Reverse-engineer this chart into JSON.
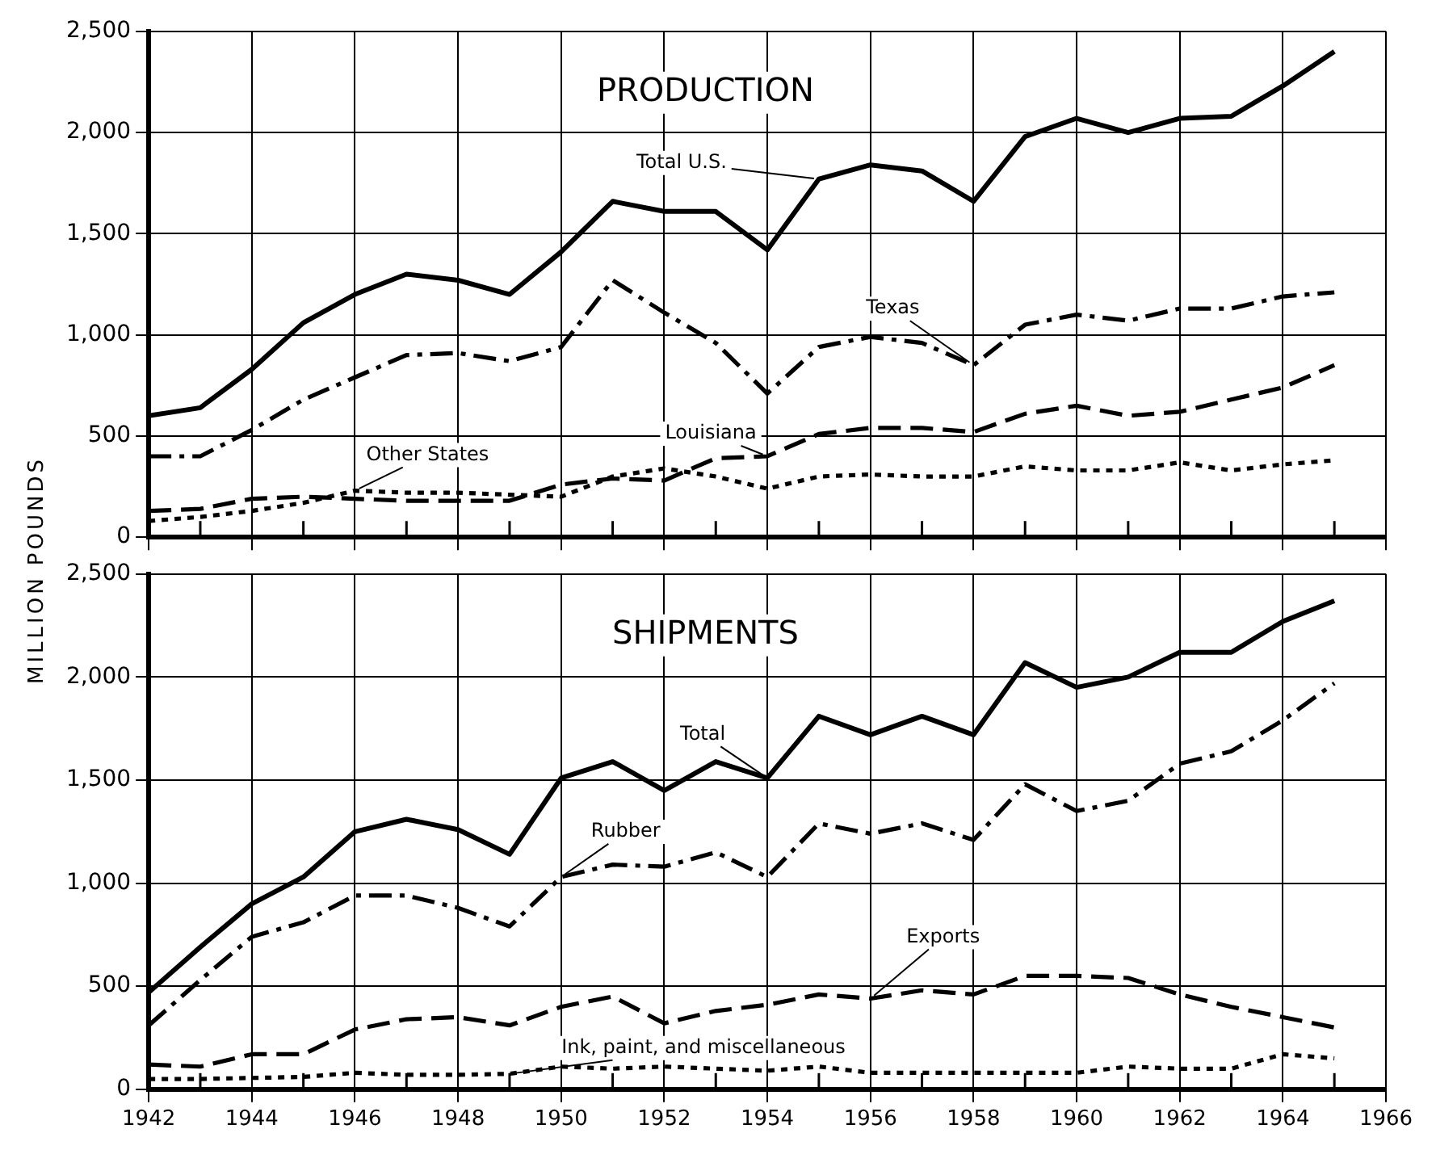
{
  "chart_data": [
    {
      "type": "line",
      "title": "PRODUCTION",
      "ylabel": "MILLION POUNDS",
      "tick_labels": "y",
      "grid": true,
      "xlim": [
        1942,
        1966
      ],
      "xticks": [
        1942,
        {
          "value": 1943,
          "label": null
        },
        1944,
        {
          "value": 1945,
          "label": null
        },
        1946,
        {
          "value": 1947,
          "label": null
        },
        1948,
        {
          "value": 1949,
          "label": null
        },
        1950,
        {
          "value": 1951,
          "label": null
        },
        1952,
        {
          "value": 1953,
          "label": null
        },
        1954,
        {
          "value": 1955,
          "label": null
        },
        1956,
        {
          "value": 1957,
          "label": null
        },
        1958,
        {
          "value": 1959,
          "label": null
        },
        1960,
        {
          "value": 1961,
          "label": null
        },
        1962,
        {
          "value": 1963,
          "label": null
        },
        1964,
        {
          "value": 1965,
          "label": null
        },
        1966
      ],
      "ylim": [
        0,
        2500
      ],
      "yticks": [
        {
          "value": 0,
          "label": "0"
        },
        {
          "value": 500,
          "label": "500"
        },
        {
          "value": 1000,
          "label": "1,000"
        },
        {
          "value": 1500,
          "label": "1,500"
        },
        {
          "value": 2000,
          "label": "2,000"
        },
        {
          "value": 2500,
          "label": "2,500"
        }
      ],
      "x": [
        1942,
        1943,
        1944,
        1945,
        1946,
        1947,
        1948,
        1949,
        1950,
        1951,
        1952,
        1953,
        1954,
        1955,
        1956,
        1957,
        1958,
        1959,
        1960,
        1961,
        1962,
        1963,
        1964,
        1965
      ],
      "marker": "none",
      "series": [
        {
          "name": "Total U.S.",
          "color": "#000000",
          "line_style": "solid",
          "values": [
            600,
            640,
            830,
            1060,
            1200,
            1300,
            1270,
            1200,
            1410,
            1660,
            1610,
            1610,
            1420,
            1770,
            1840,
            1810,
            1660,
            1980,
            2070,
            2000,
            2070,
            2080,
            2230,
            2400
          ]
        },
        {
          "name": "Texas",
          "color": "#000000",
          "line_style": "dashdot",
          "values": [
            400,
            400,
            530,
            680,
            790,
            900,
            910,
            870,
            940,
            1270,
            1110,
            960,
            710,
            940,
            990,
            960,
            850,
            1050,
            1100,
            1070,
            1130,
            1130,
            1190,
            1210
          ]
        },
        {
          "name": "Louisiana",
          "color": "#000000",
          "line_style": "dashed",
          "values": [
            130,
            140,
            190,
            200,
            190,
            180,
            180,
            180,
            260,
            290,
            280,
            390,
            400,
            510,
            540,
            540,
            520,
            610,
            650,
            600,
            620,
            680,
            740,
            850
          ]
        },
        {
          "name": "Other States",
          "color": "#000000",
          "line_style": "dotted",
          "values": [
            80,
            100,
            130,
            170,
            230,
            220,
            220,
            210,
            200,
            300,
            340,
            300,
            240,
            300,
            310,
            300,
            300,
            350,
            330,
            330,
            370,
            330,
            360,
            380
          ]
        }
      ]
    },
    {
      "type": "line",
      "title": "SHIPMENTS",
      "grid": true,
      "xlim": [
        1942,
        1966
      ],
      "xticks": [
        1942,
        {
          "value": 1943,
          "label": null
        },
        1944,
        {
          "value": 1945,
          "label": null
        },
        1946,
        {
          "value": 1947,
          "label": null
        },
        1948,
        {
          "value": 1949,
          "label": null
        },
        1950,
        {
          "value": 1951,
          "label": null
        },
        1952,
        {
          "value": 1953,
          "label": null
        },
        1954,
        {
          "value": 1955,
          "label": null
        },
        1956,
        {
          "value": 1957,
          "label": null
        },
        1958,
        {
          "value": 1959,
          "label": null
        },
        1960,
        {
          "value": 1961,
          "label": null
        },
        1962,
        {
          "value": 1963,
          "label": null
        },
        1964,
        {
          "value": 1965,
          "label": null
        },
        1966
      ],
      "ylim": [
        0,
        2500
      ],
      "yticks": [
        {
          "value": 0,
          "label": "0"
        },
        {
          "value": 500,
          "label": "500"
        },
        {
          "value": 1000,
          "label": "1,000"
        },
        {
          "value": 1500,
          "label": "1,500"
        },
        {
          "value": 2000,
          "label": "2,000"
        },
        {
          "value": 2500,
          "label": "2,500"
        }
      ],
      "x": [
        1942,
        1943,
        1944,
        1945,
        1946,
        1947,
        1948,
        1949,
        1950,
        1951,
        1952,
        1953,
        1954,
        1955,
        1956,
        1957,
        1958,
        1959,
        1960,
        1961,
        1962,
        1963,
        1964,
        1965
      ],
      "marker": "none",
      "series": [
        {
          "name": "Total",
          "color": "#000000",
          "line_style": "solid",
          "values": [
            470,
            690,
            900,
            1030,
            1250,
            1310,
            1260,
            1140,
            1510,
            1590,
            1450,
            1590,
            1510,
            1810,
            1720,
            1810,
            1720,
            2070,
            1950,
            2000,
            2120,
            2120,
            2270,
            2370
          ]
        },
        {
          "name": "Rubber",
          "color": "#000000",
          "line_style": "dashdot",
          "values": [
            310,
            530,
            740,
            810,
            940,
            940,
            880,
            790,
            1030,
            1090,
            1080,
            1150,
            1030,
            1290,
            1240,
            1290,
            1210,
            1480,
            1350,
            1400,
            1580,
            1640,
            1790,
            1970
          ]
        },
        {
          "name": "Exports",
          "color": "#000000",
          "line_style": "dashed",
          "values": [
            120,
            110,
            170,
            170,
            290,
            340,
            350,
            310,
            400,
            450,
            320,
            380,
            410,
            460,
            440,
            480,
            460,
            550,
            550,
            540,
            460,
            400,
            350,
            300
          ]
        },
        {
          "name": "Ink, paint, and miscellaneous",
          "color": "#000000",
          "line_style": "dotted",
          "values": [
            50,
            50,
            55,
            60,
            80,
            70,
            70,
            75,
            110,
            100,
            110,
            100,
            90,
            110,
            80,
            80,
            80,
            80,
            80,
            110,
            100,
            100,
            170,
            150
          ]
        }
      ]
    }
  ]
}
